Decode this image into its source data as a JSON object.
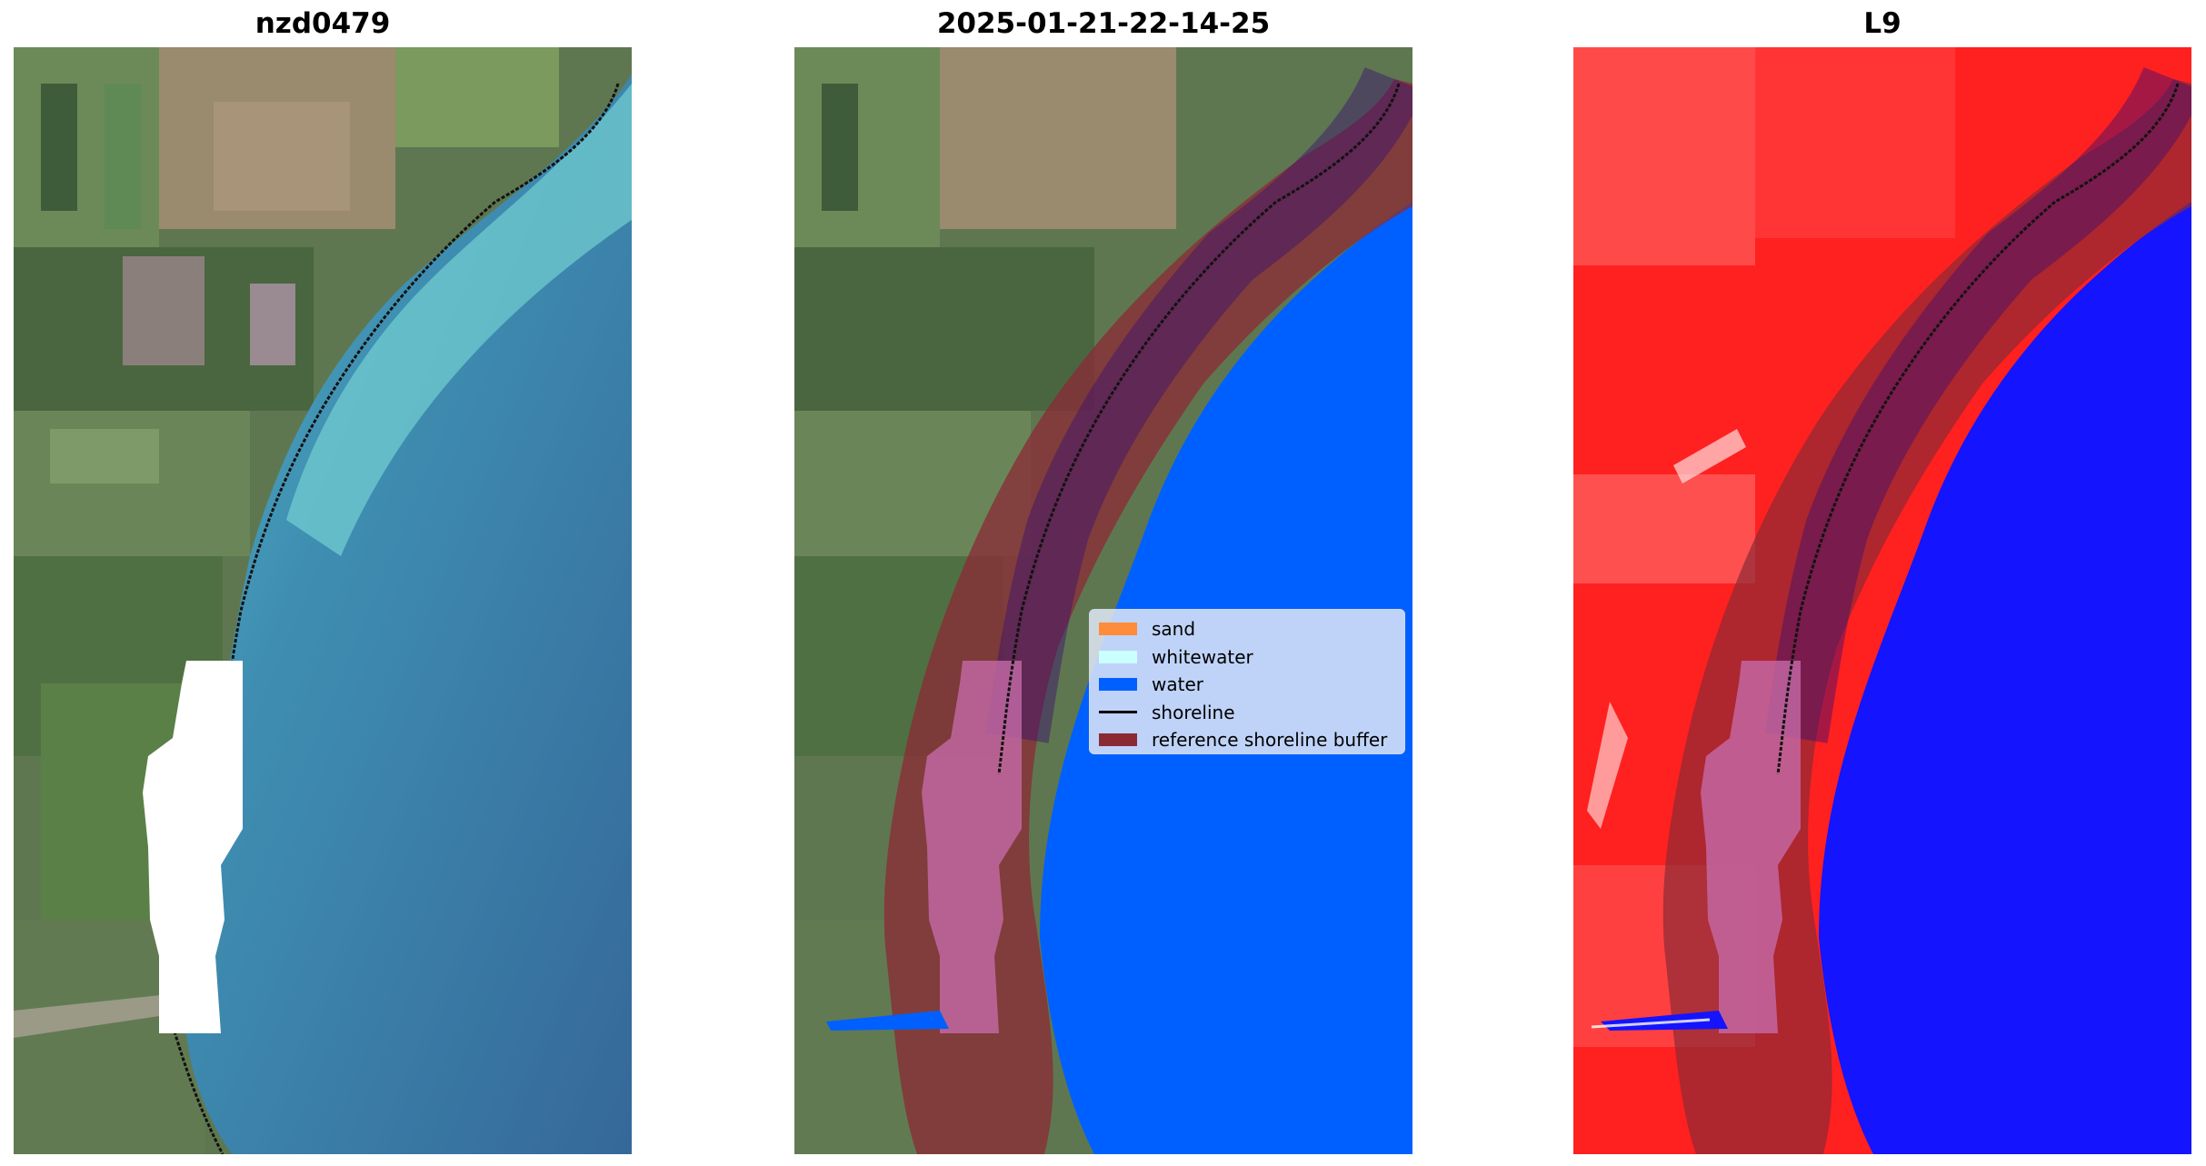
{
  "panels": [
    {
      "title": "nzd0479"
    },
    {
      "title": "2025-01-21-22-14-25"
    },
    {
      "title": "L9"
    }
  ],
  "legend": {
    "items": [
      {
        "label": "sand",
        "color": "#ff8c3a",
        "kind": "patch"
      },
      {
        "label": "whitewater",
        "color": "#ccffff",
        "kind": "patch"
      },
      {
        "label": "water",
        "color": "#0060ff",
        "kind": "patch"
      },
      {
        "label": "shoreline",
        "color": "#000000",
        "kind": "line"
      },
      {
        "label": "reference shoreline buffer",
        "color": "#8b2a35",
        "kind": "patch"
      }
    ]
  },
  "colors": {
    "land_rgb": "#5e7a4c",
    "sea_rgb": "#3a76a0",
    "shallow_rgb": "#6cc9cf",
    "water_class": "#0060ff",
    "buffer": "#8b2a35",
    "index_land": "#ff2020",
    "index_water": "#1414ff"
  }
}
